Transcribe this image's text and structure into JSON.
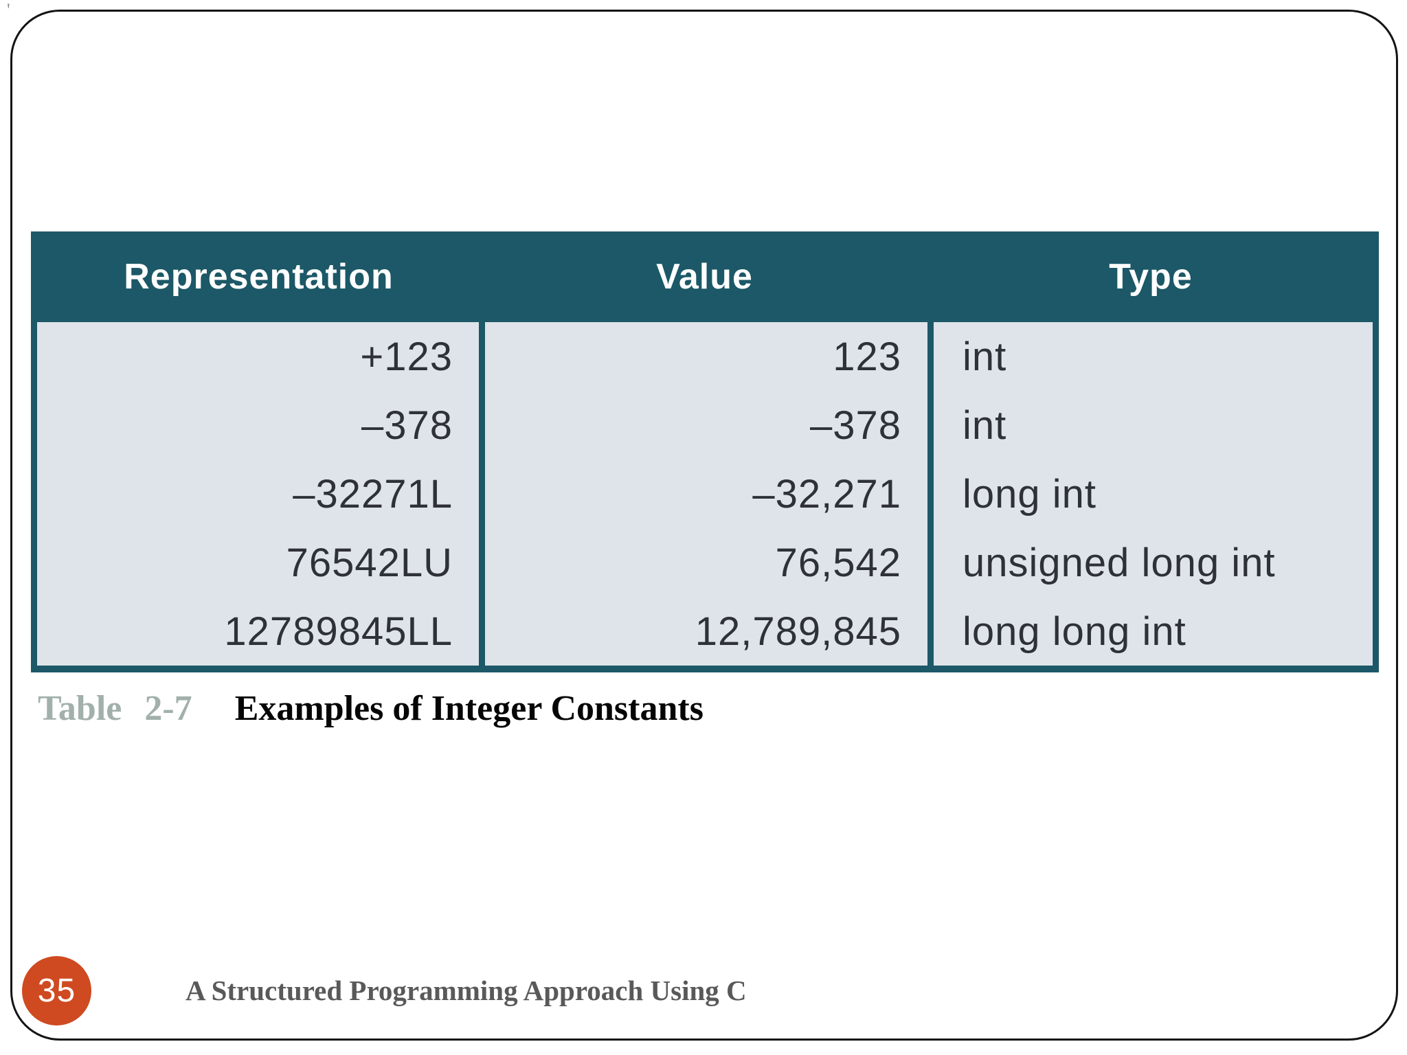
{
  "slide": {
    "corner_mark": "'",
    "page_number": "35",
    "footer_title": "A Structured Programming Approach Using C"
  },
  "caption": {
    "label": "Table 2-7",
    "title": "Examples of Integer Constants"
  },
  "table": {
    "columns": [
      {
        "label": "Representation",
        "align": "right"
      },
      {
        "label": "Value",
        "align": "right"
      },
      {
        "label": "Type",
        "align": "left"
      }
    ],
    "rows": [
      {
        "representation": "+123",
        "value": "123",
        "type": "int"
      },
      {
        "representation": "–378",
        "value": "–378",
        "type": "int"
      },
      {
        "representation": "–32271L",
        "value": "–32,271",
        "type": "long int"
      },
      {
        "representation": "76542LU",
        "value": "76,542",
        "type": "unsigned long int"
      },
      {
        "representation": "12789845LL",
        "value": "12,789,845",
        "type": "long long int"
      }
    ]
  },
  "colors": {
    "header_bg": "#1c5867",
    "body_bg": "#dee4ea",
    "accent_orange": "#cf4a21",
    "caption_label": "#a2b0ac",
    "footer_text": "#595959"
  }
}
